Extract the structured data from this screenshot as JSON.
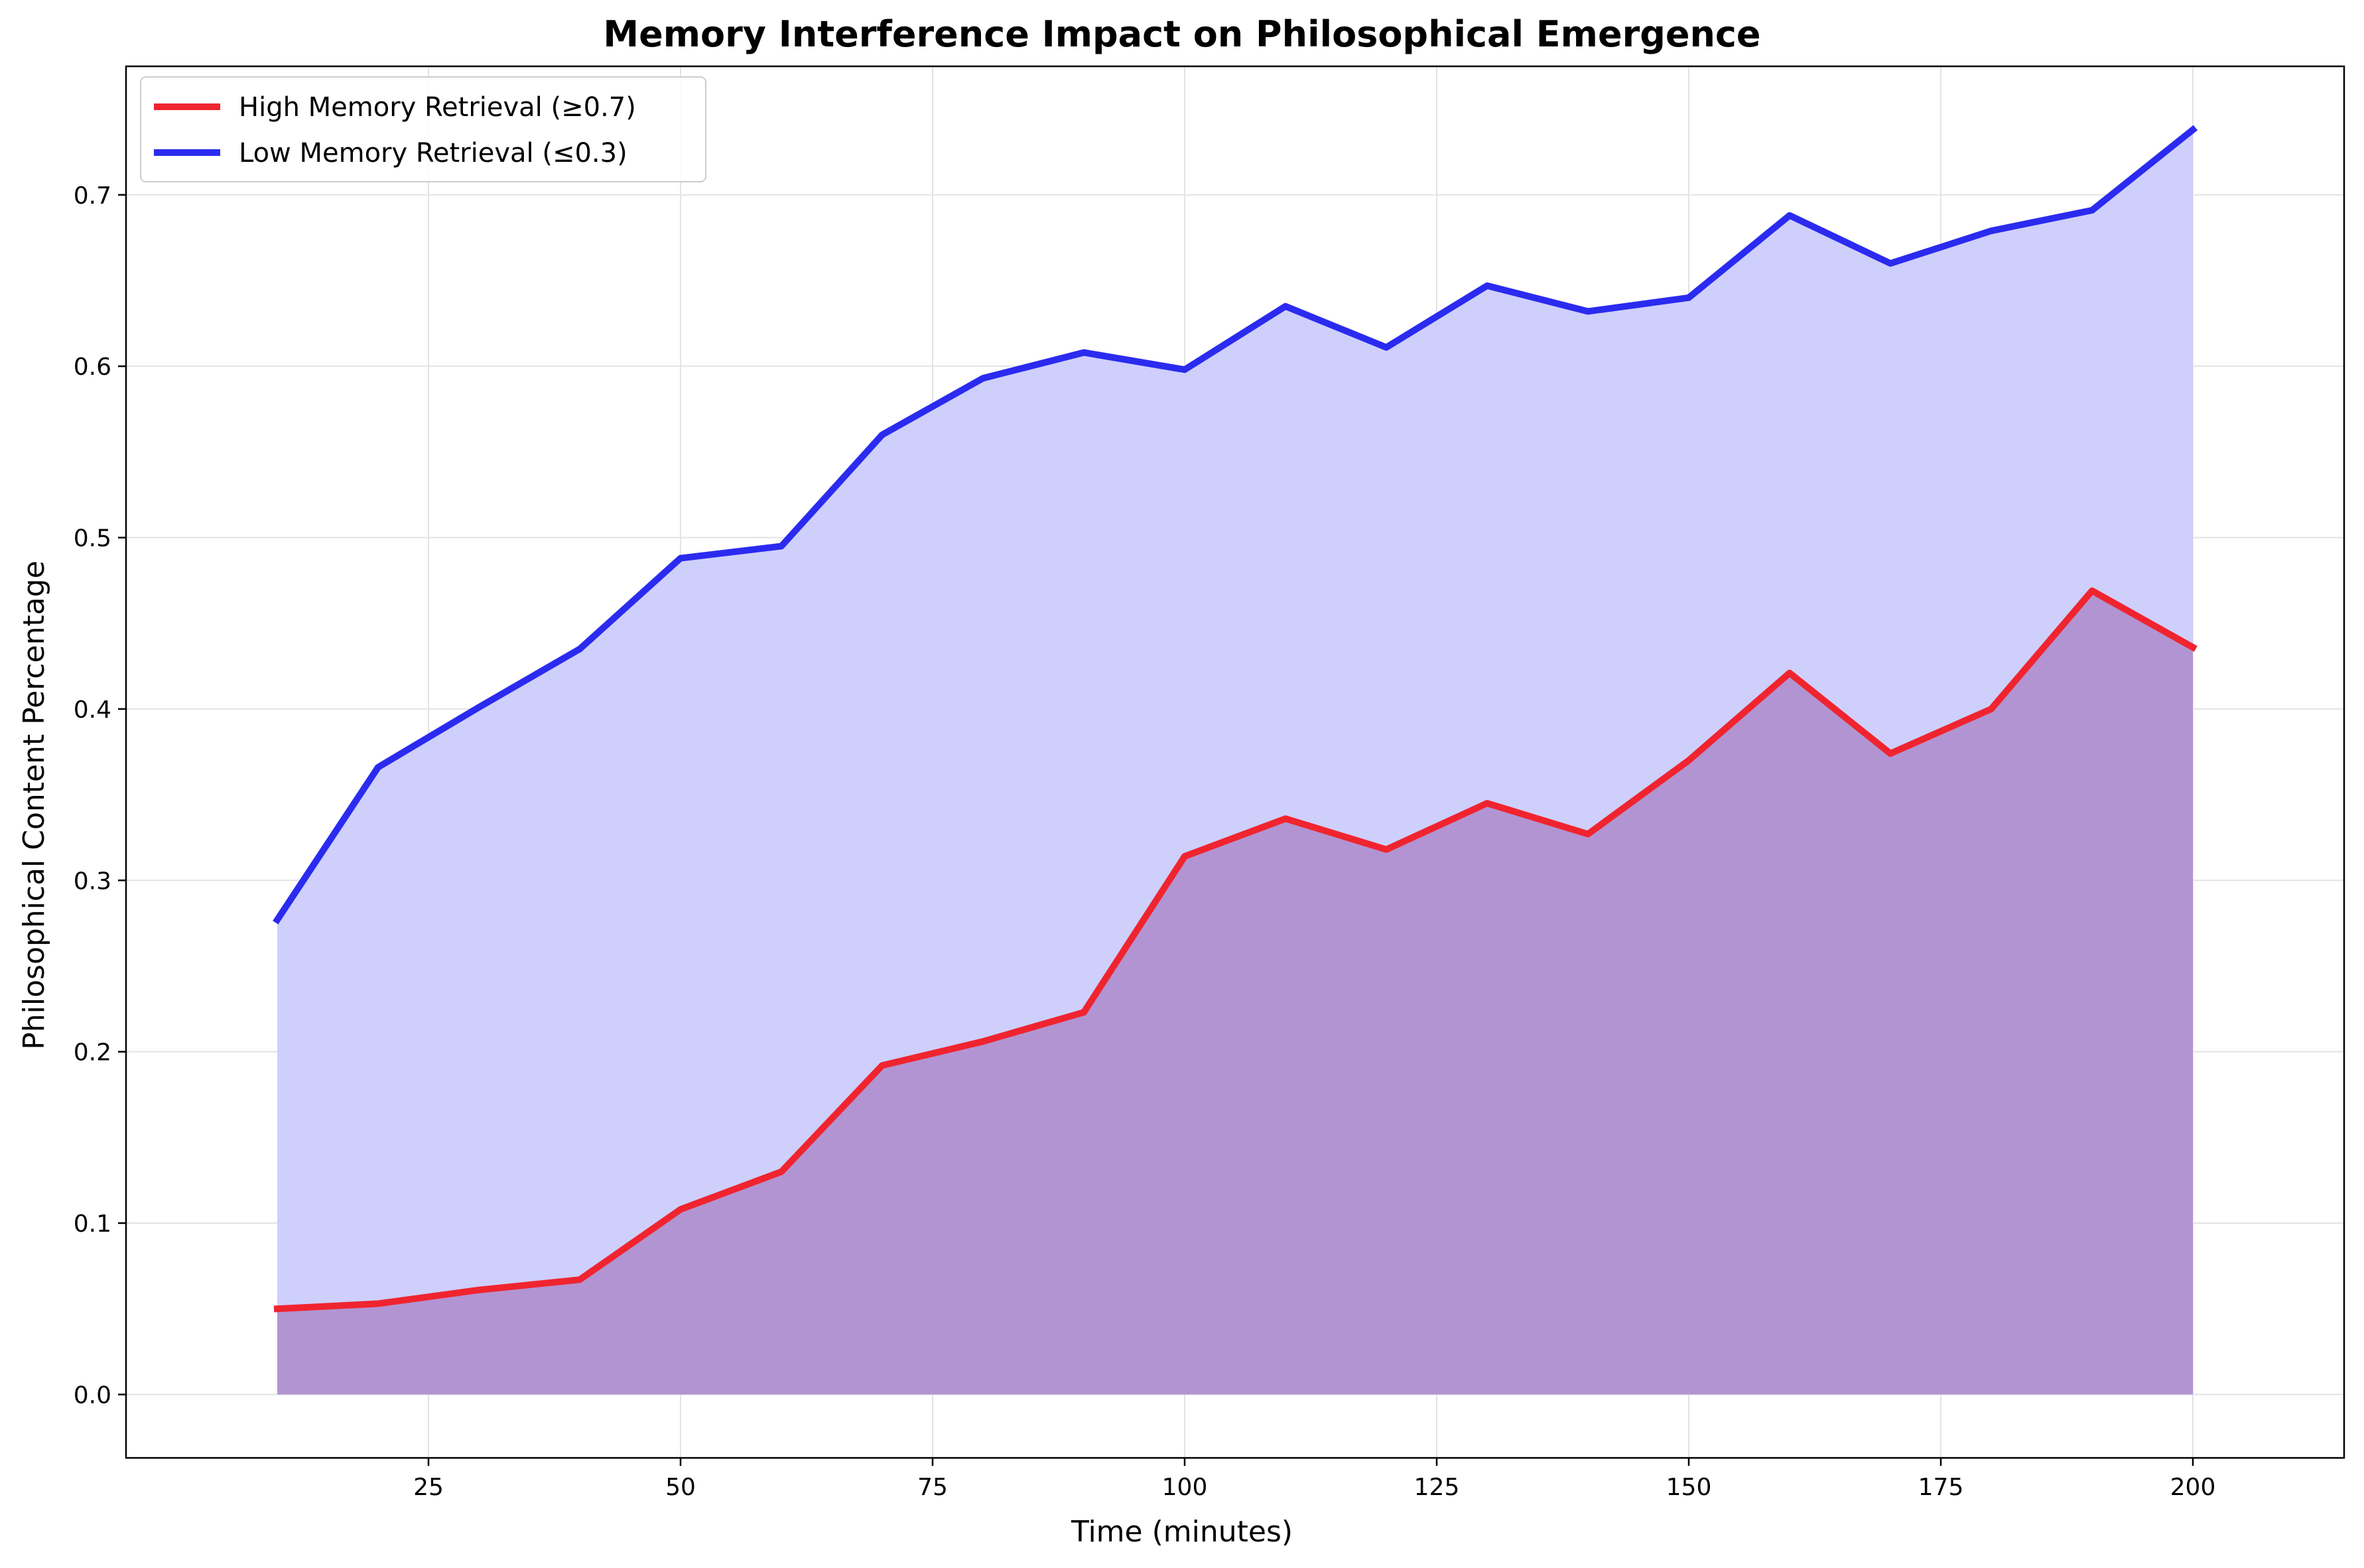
{
  "chart_data": {
    "type": "area",
    "title": "Memory Interference Impact on Philosophical Emergence",
    "xlabel": "Time (minutes)",
    "ylabel": "Philosophical Content Percentage",
    "xlim": [
      -5,
      215
    ],
    "ylim": [
      -0.037,
      0.775
    ],
    "x_ticks": [
      25,
      50,
      75,
      100,
      125,
      150,
      175,
      200
    ],
    "y_ticks": [
      0.0,
      0.1,
      0.2,
      0.3,
      0.4,
      0.5,
      0.6,
      0.7
    ],
    "grid": true,
    "legend_position": "top-left",
    "x": [
      10,
      20,
      30,
      40,
      50,
      60,
      70,
      80,
      90,
      100,
      110,
      120,
      130,
      140,
      150,
      160,
      170,
      180,
      190,
      200
    ],
    "series": [
      {
        "name": "High Memory Retrieval (≥0.7)",
        "color": "#f0242f",
        "fill": "#b090d0",
        "values": [
          0.05,
          0.053,
          0.061,
          0.067,
          0.108,
          0.13,
          0.192,
          0.206,
          0.223,
          0.314,
          0.336,
          0.318,
          0.345,
          0.327,
          0.37,
          0.421,
          0.374,
          0.4,
          0.469,
          0.436
        ]
      },
      {
        "name": "Low Memory Retrieval (≤0.3)",
        "color": "#2b2bf0",
        "fill": "#ccccfc",
        "values": [
          0.277,
          0.366,
          0.401,
          0.435,
          0.488,
          0.495,
          0.56,
          0.593,
          0.608,
          0.598,
          0.635,
          0.611,
          0.647,
          0.632,
          0.64,
          0.688,
          0.66,
          0.679,
          0.691,
          0.738
        ]
      }
    ]
  }
}
